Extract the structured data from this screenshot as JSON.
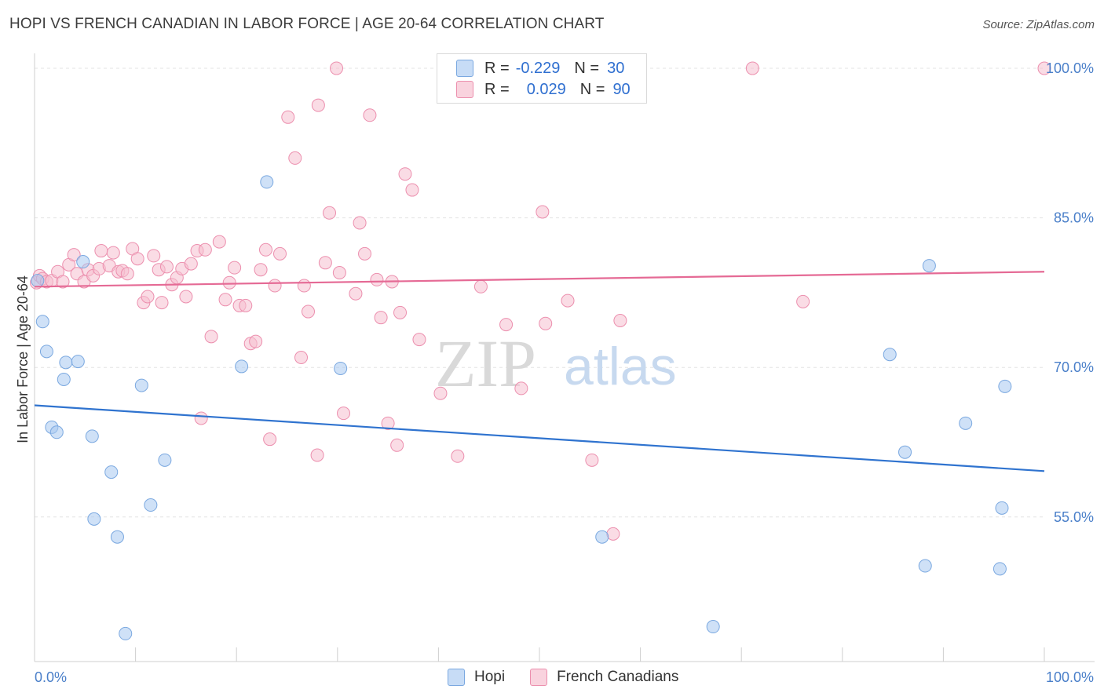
{
  "title": "HOPI VS FRENCH CANADIAN IN LABOR FORCE | AGE 20-64 CORRELATION CHART",
  "source": "Source: ZipAtlas.com",
  "watermark": {
    "zip": "ZIP",
    "atlas": "atlas"
  },
  "legend": {
    "r_label": "R =",
    "n_label": "N =",
    "series": [
      {
        "name": "Hopi",
        "r": "-0.229",
        "n": "30",
        "color": "#a8c8f0"
      },
      {
        "name": "French Canadians",
        "r": "0.029",
        "n": "90",
        "color": "#f6b8cb"
      }
    ]
  },
  "colors": {
    "hopi_fill": "#a8c8f0",
    "hopi_stroke": "#7aa8e0",
    "hopi_line": "#2f73cf",
    "french_fill": "#f6c0d0",
    "french_stroke": "#ec8fae",
    "french_line": "#e56a95",
    "grid": "#e3e3e3",
    "tick": "#4a7fc9"
  },
  "chart_data": {
    "type": "scatter",
    "title": "HOPI VS FRENCH CANADIAN IN LABOR FORCE | AGE 20-64 CORRELATION CHART",
    "xlabel": "",
    "ylabel": "In Labor Force | Age 20-64",
    "xlim": [
      0,
      100
    ],
    "ylim": [
      40.5,
      101.5
    ],
    "x_tick_labels": [
      "0.0%",
      "100.0%"
    ],
    "y_ticks": [
      55,
      70,
      85,
      100
    ],
    "y_tick_labels": [
      "55.0%",
      "70.0%",
      "85.0%",
      "100.0%"
    ],
    "series": [
      {
        "name": "Hopi",
        "trend": {
          "x": [
            0,
            100
          ],
          "y": [
            66.2,
            59.6
          ]
        },
        "points": [
          [
            0.3,
            78.7
          ],
          [
            0.8,
            74.6
          ],
          [
            1.2,
            71.6
          ],
          [
            1.7,
            64.0
          ],
          [
            2.2,
            63.5
          ],
          [
            2.9,
            68.8
          ],
          [
            3.1,
            70.5
          ],
          [
            4.3,
            70.6
          ],
          [
            4.8,
            80.6
          ],
          [
            5.7,
            63.1
          ],
          [
            5.9,
            54.8
          ],
          [
            7.6,
            59.5
          ],
          [
            8.2,
            53.0
          ],
          [
            9.0,
            43.3
          ],
          [
            10.6,
            68.2
          ],
          [
            11.5,
            56.2
          ],
          [
            12.9,
            60.7
          ],
          [
            20.5,
            70.1
          ],
          [
            23.0,
            88.6
          ],
          [
            30.3,
            69.9
          ],
          [
            56.2,
            53.0
          ],
          [
            67.2,
            44.0
          ],
          [
            84.7,
            71.3
          ],
          [
            86.2,
            61.5
          ],
          [
            88.2,
            50.1
          ],
          [
            88.6,
            80.2
          ],
          [
            92.2,
            64.4
          ],
          [
            96.1,
            68.1
          ],
          [
            95.6,
            49.8
          ],
          [
            95.8,
            55.9
          ]
        ]
      },
      {
        "name": "French Canadians",
        "trend": {
          "x": [
            0,
            100
          ],
          "y": [
            78.1,
            79.6
          ]
        },
        "points": [
          [
            0.2,
            78.5
          ],
          [
            0.5,
            79.2
          ],
          [
            0.8,
            78.9
          ],
          [
            1.2,
            78.6
          ],
          [
            1.7,
            78.7
          ],
          [
            2.3,
            79.6
          ],
          [
            2.8,
            78.6
          ],
          [
            3.4,
            80.3
          ],
          [
            3.9,
            81.3
          ],
          [
            4.2,
            79.4
          ],
          [
            4.9,
            78.6
          ],
          [
            5.3,
            79.8
          ],
          [
            5.8,
            79.2
          ],
          [
            6.4,
            79.9
          ],
          [
            6.6,
            81.7
          ],
          [
            7.4,
            80.2
          ],
          [
            7.8,
            81.5
          ],
          [
            8.3,
            79.6
          ],
          [
            8.7,
            79.7
          ],
          [
            9.2,
            79.4
          ],
          [
            9.7,
            81.9
          ],
          [
            10.2,
            80.9
          ],
          [
            10.8,
            76.5
          ],
          [
            11.2,
            77.1
          ],
          [
            11.8,
            81.2
          ],
          [
            12.3,
            79.8
          ],
          [
            12.6,
            76.5
          ],
          [
            13.1,
            80.1
          ],
          [
            13.6,
            78.3
          ],
          [
            14.1,
            79.0
          ],
          [
            14.6,
            79.9
          ],
          [
            15.0,
            77.1
          ],
          [
            15.5,
            80.4
          ],
          [
            16.1,
            81.7
          ],
          [
            16.9,
            81.8
          ],
          [
            17.5,
            73.1
          ],
          [
            18.3,
            82.6
          ],
          [
            18.9,
            76.8
          ],
          [
            19.3,
            78.5
          ],
          [
            19.8,
            80.0
          ],
          [
            20.3,
            76.2
          ],
          [
            20.9,
            76.2
          ],
          [
            21.4,
            72.4
          ],
          [
            21.9,
            72.6
          ],
          [
            22.4,
            79.8
          ],
          [
            22.9,
            81.8
          ],
          [
            23.8,
            78.2
          ],
          [
            24.3,
            81.4
          ],
          [
            25.1,
            95.1
          ],
          [
            25.8,
            91.0
          ],
          [
            26.7,
            78.2
          ],
          [
            27.1,
            75.6
          ],
          [
            28.1,
            96.3
          ],
          [
            28.8,
            80.5
          ],
          [
            29.2,
            85.5
          ],
          [
            29.9,
            100.0
          ],
          [
            30.6,
            65.4
          ],
          [
            31.8,
            77.4
          ],
          [
            32.2,
            84.5
          ],
          [
            32.7,
            81.4
          ],
          [
            33.2,
            95.3
          ],
          [
            33.9,
            78.8
          ],
          [
            34.3,
            75.0
          ],
          [
            35.0,
            64.4
          ],
          [
            35.4,
            78.6
          ],
          [
            35.9,
            62.2
          ],
          [
            36.2,
            75.5
          ],
          [
            36.7,
            89.4
          ],
          [
            37.4,
            87.8
          ],
          [
            38.1,
            72.8
          ],
          [
            40.2,
            67.4
          ],
          [
            41.9,
            61.1
          ],
          [
            44.2,
            78.1
          ],
          [
            46.7,
            74.3
          ],
          [
            48.0,
            100.0
          ],
          [
            48.2,
            67.9
          ],
          [
            50.3,
            85.6
          ],
          [
            50.6,
            74.4
          ],
          [
            52.8,
            76.7
          ],
          [
            55.2,
            60.7
          ],
          [
            57.3,
            53.3
          ],
          [
            58.0,
            74.7
          ],
          [
            71.1,
            100.0
          ],
          [
            76.1,
            76.6
          ],
          [
            100.0,
            100.0
          ],
          [
            16.5,
            64.9
          ],
          [
            23.3,
            62.8
          ],
          [
            26.4,
            71.0
          ],
          [
            28.0,
            61.2
          ],
          [
            30.2,
            79.5
          ]
        ]
      }
    ]
  }
}
